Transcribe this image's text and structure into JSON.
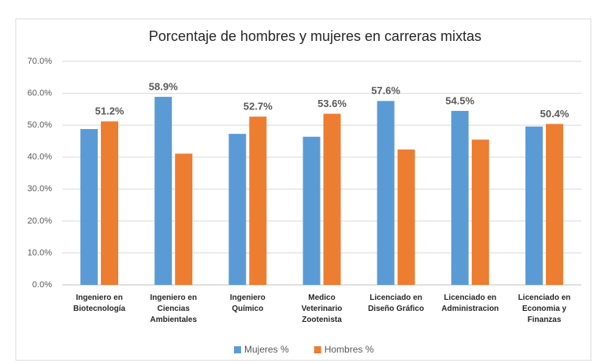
{
  "chart_data": {
    "type": "bar",
    "title": "Porcentaje de hombres y mujeres en  carreras mixtas",
    "categories": [
      "Ingeniero en\nBiotecnología",
      "Ingeniero en\nCiencias\nAmbientales",
      "Ingeniero\nQuímico",
      "Medico\nVeterinario\nZootenista",
      "Licenciado en\nDiseño Gráfico",
      "Licenciado en\nAdministracion",
      "Licenciado en\nEconomia y\nFinanzas"
    ],
    "series": [
      {
        "name": "Mujeres %",
        "color": "#5b9bd5",
        "values": [
          48.8,
          58.9,
          47.3,
          46.4,
          57.6,
          54.5,
          49.6
        ],
        "value_labels": [
          null,
          "58.9%",
          null,
          null,
          "57.6%",
          "54.5%",
          null
        ]
      },
      {
        "name": "Hombres %",
        "color": "#ed7d31",
        "values": [
          51.2,
          41.1,
          52.7,
          53.6,
          42.4,
          45.5,
          50.4
        ],
        "value_labels": [
          "51.2%",
          null,
          "52.7%",
          "53.6%",
          null,
          null,
          "50.4%"
        ]
      }
    ],
    "ylim": [
      0,
      70
    ],
    "yticks": [
      {
        "value": 0,
        "label": "0.0%"
      },
      {
        "value": 10,
        "label": "10.0%"
      },
      {
        "value": 20,
        "label": "20.0%"
      },
      {
        "value": 30,
        "label": "30.0%"
      },
      {
        "value": 40,
        "label": "40.0%"
      },
      {
        "value": 50,
        "label": "50.0%"
      },
      {
        "value": 60,
        "label": "60.0%"
      },
      {
        "value": 70,
        "label": "70.0%"
      }
    ],
    "grid": true,
    "legend": "bottom"
  }
}
